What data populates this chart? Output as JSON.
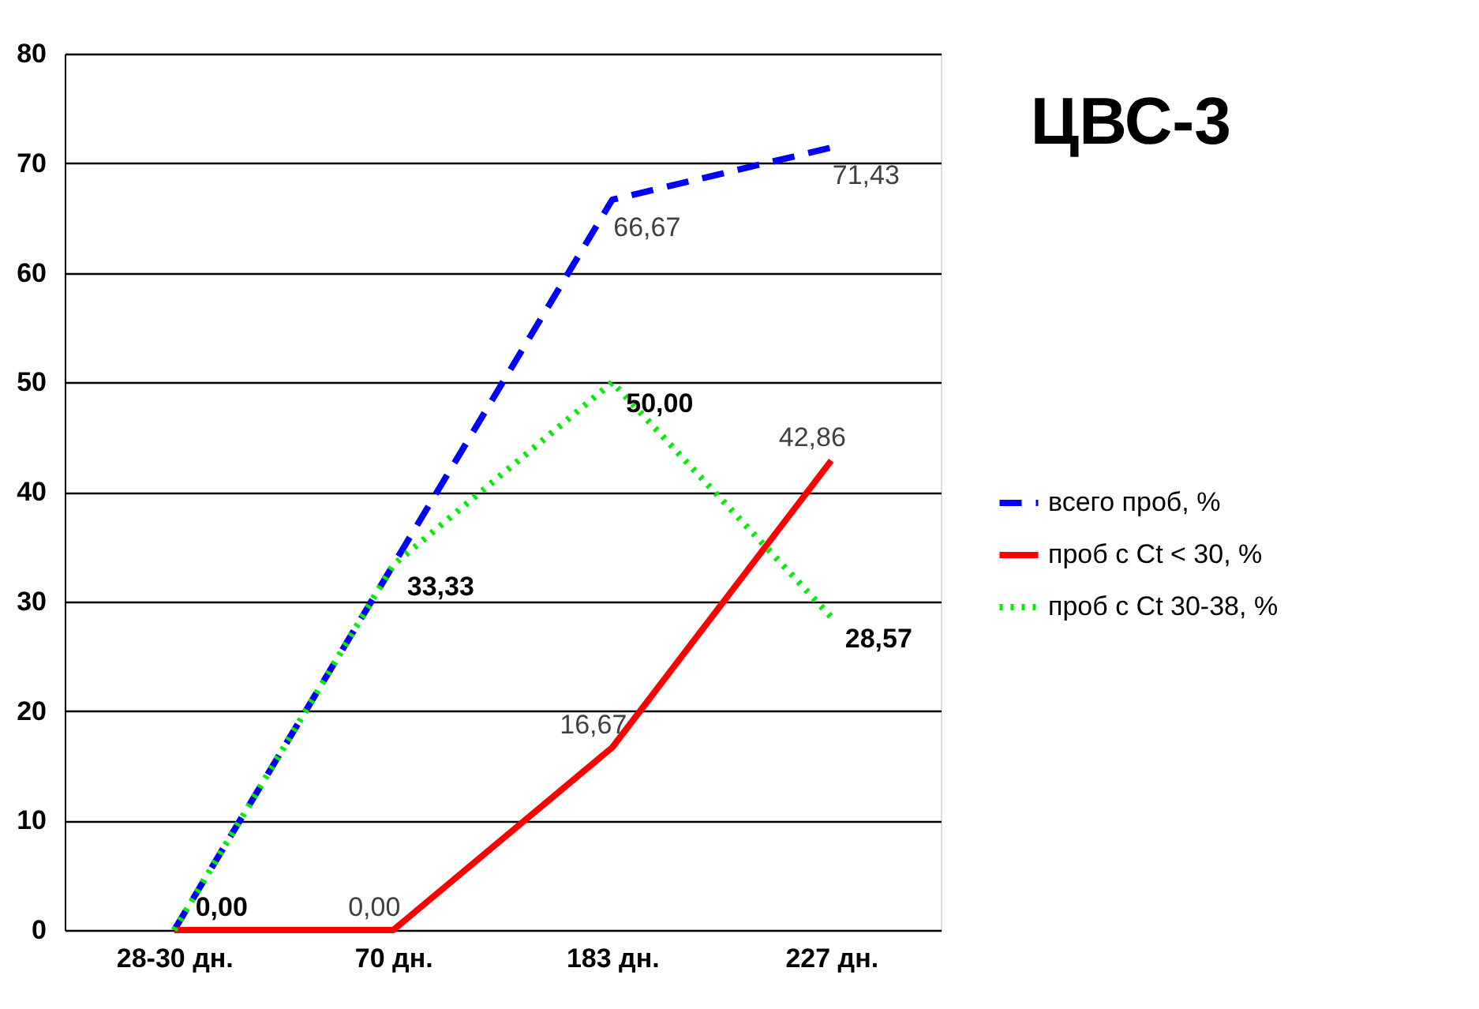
{
  "chart_data": {
    "type": "line",
    "title": "ЦВС-3",
    "categories": [
      "28-30 дн.",
      "70 дн.",
      "183 дн.",
      "227 дн."
    ],
    "series": [
      {
        "name": "всего проб, %",
        "color": "#0000ff",
        "line_style": "dashed",
        "values": [
          0,
          33.33,
          66.67,
          71.43
        ],
        "value_labels": [
          null,
          null,
          "66,67",
          "71,43"
        ]
      },
      {
        "name": "проб с Ct < 30, %",
        "color": "#ff0000",
        "line_style": "solid",
        "values": [
          0,
          0,
          16.67,
          42.86
        ],
        "value_labels": [
          null,
          "0,00",
          "16,67",
          "42,86"
        ]
      },
      {
        "name": "проб с Ct 30-38, %",
        "color": "#00ee00",
        "line_style": "dotted",
        "values": [
          0,
          33.33,
          50.0,
          28.57
        ],
        "value_labels": [
          "0,00",
          "33,33",
          "50,00",
          "28,57"
        ]
      }
    ],
    "ylim": [
      0,
      80
    ],
    "yticks": [
      0,
      10,
      20,
      30,
      40,
      50,
      60,
      70,
      80
    ],
    "grid": "y",
    "legend": "right",
    "marker": "none"
  }
}
